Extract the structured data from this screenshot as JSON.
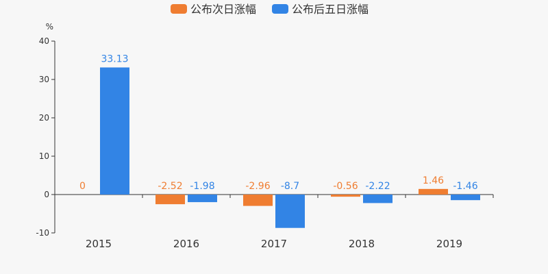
{
  "chart_data": {
    "type": "bar",
    "categories": [
      "2015",
      "2016",
      "2017",
      "2018",
      "2019"
    ],
    "series": [
      {
        "name": "公布次日涨幅",
        "values": [
          0,
          -2.52,
          -2.96,
          -0.56,
          1.46
        ],
        "labels": [
          "0",
          "-2.52",
          "-2.96",
          "-0.56",
          "1.46"
        ],
        "color": "#ef7d31"
      },
      {
        "name": "公布后五日涨幅",
        "values": [
          33.13,
          -1.98,
          -8.7,
          -2.22,
          -1.46
        ],
        "labels": [
          "33.13",
          "-1.98",
          "-8.7",
          "-2.22",
          "-1.46"
        ],
        "color": "#3284e5"
      }
    ],
    "yunit": "%",
    "ylim": [
      -10,
      40
    ],
    "yticks": [
      "-10",
      "0",
      "10",
      "20",
      "30",
      "40"
    ],
    "grid": false,
    "legend_position": "top-center"
  }
}
